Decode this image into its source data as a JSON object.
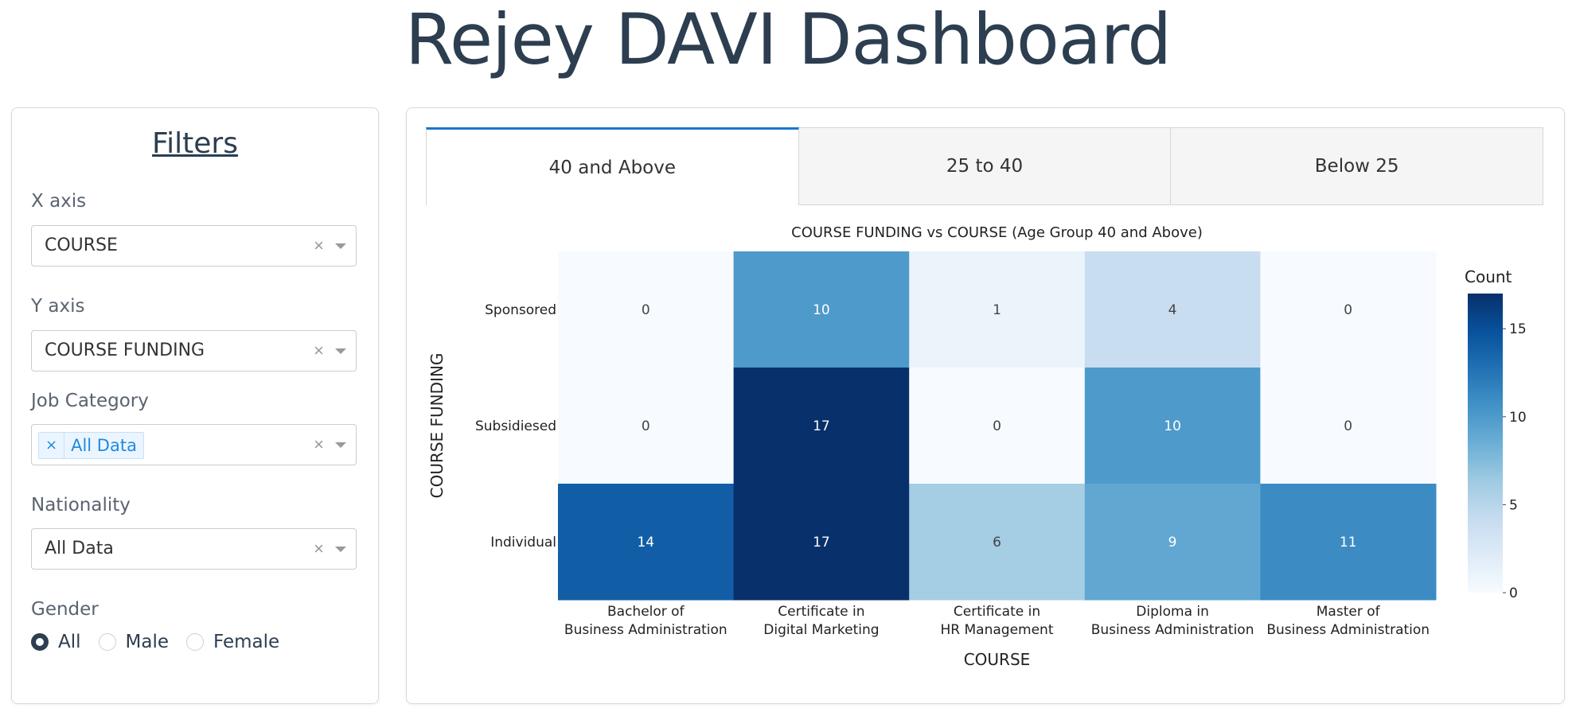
{
  "header": {
    "title": "Rejey DAVI Dashboard"
  },
  "filters": {
    "title": "Filters",
    "x_axis": {
      "label": "X axis",
      "value": "COURSE",
      "clear": "×"
    },
    "y_axis": {
      "label": "Y axis",
      "value": "COURSE FUNDING",
      "clear": "×"
    },
    "job_category": {
      "label": "Job Category",
      "chip": "All Data",
      "chip_remove": "×",
      "clear": "×"
    },
    "nationality": {
      "label": "Nationality",
      "value": "All Data",
      "clear": "×"
    },
    "gender": {
      "label": "Gender",
      "options": [
        "All",
        "Male",
        "Female"
      ],
      "selected": "All"
    }
  },
  "tabs": [
    {
      "label": "40 and Above",
      "active": true
    },
    {
      "label": "25 to 40",
      "active": false
    },
    {
      "label": "Below 25",
      "active": false
    }
  ],
  "chart_data": {
    "type": "heatmap",
    "title": "COURSE FUNDING vs COURSE (Age Group 40 and Above)",
    "xlabel": "COURSE",
    "ylabel": "COURSE FUNDING",
    "x": [
      [
        "Bachelor of",
        "Business Administration"
      ],
      [
        "Certificate in",
        "Digital Marketing"
      ],
      [
        "Certificate in",
        "HR Management"
      ],
      [
        "Diploma in",
        "Business Administration"
      ],
      [
        "Master of",
        "Business Administration"
      ]
    ],
    "y": [
      "Sponsored",
      "Subsidiesed",
      "Individual"
    ],
    "z": [
      [
        0,
        10,
        1,
        4,
        0
      ],
      [
        0,
        17,
        0,
        10,
        0
      ],
      [
        14,
        17,
        6,
        9,
        11
      ]
    ],
    "colorbar": {
      "title": "Count",
      "ticks": [
        0,
        5,
        10,
        15
      ],
      "range": [
        0,
        17
      ]
    },
    "colorscale": [
      "#f7fbff",
      "#deebf7",
      "#c6dbef",
      "#9ecae1",
      "#6baed6",
      "#4292c6",
      "#2171b5",
      "#08519c",
      "#08306b"
    ]
  }
}
